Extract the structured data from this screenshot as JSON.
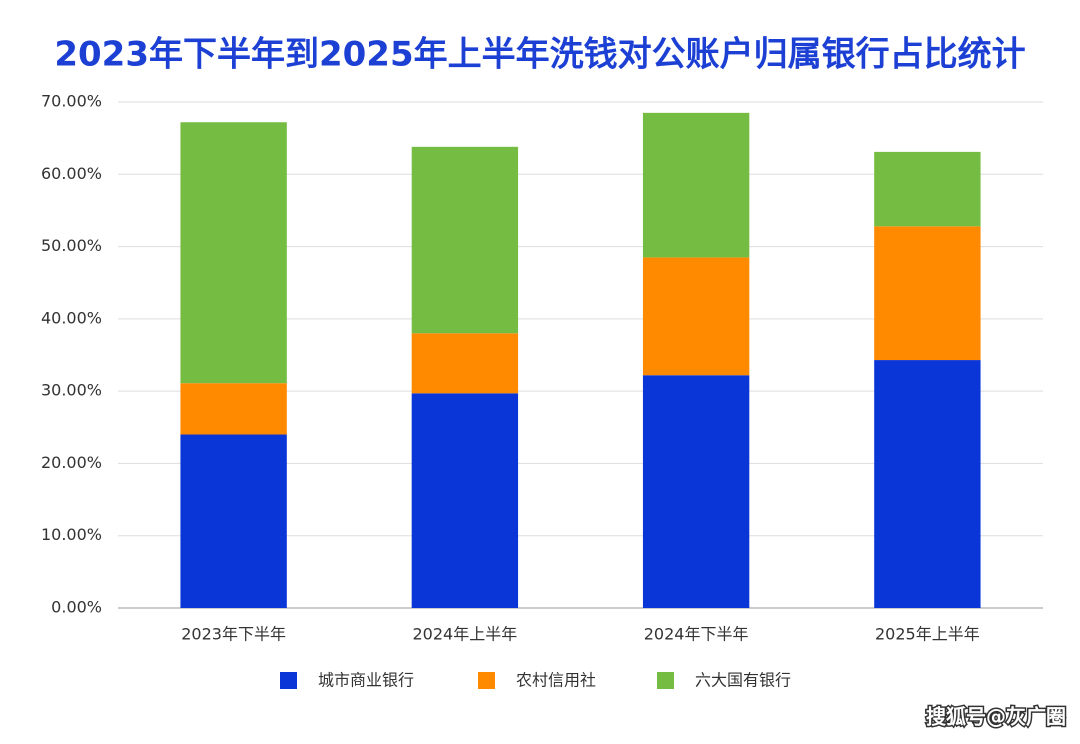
{
  "chart_data": {
    "type": "stacked_bar",
    "title": "2023年下半年到2025年上半年洗钱对公账户归属银行占比统计",
    "categories": [
      "2023年下半年",
      "2024年上半年",
      "2024年下半年",
      "2025年上半年"
    ],
    "series": [
      {
        "name": "城市商业银行",
        "color": "#0a36d8",
        "values": [
          24.0,
          29.7,
          32.2,
          34.3
        ]
      },
      {
        "name": "农村信用社",
        "color": "#ff8a00",
        "values": [
          7.1,
          8.3,
          16.3,
          18.5
        ]
      },
      {
        "name": "六大国有银行",
        "color": "#75bd42",
        "values": [
          36.1,
          25.8,
          20.0,
          10.3
        ]
      }
    ],
    "ylim": [
      0,
      70
    ],
    "yticks": [
      {
        "value": 0,
        "label": "0.00%"
      },
      {
        "value": 10,
        "label": "10.00%"
      },
      {
        "value": 20,
        "label": "20.00%"
      },
      {
        "value": 30,
        "label": "30.00%"
      },
      {
        "value": 40,
        "label": "40.00%"
      },
      {
        "value": 50,
        "label": "50.00%"
      },
      {
        "value": 60,
        "label": "60.00%"
      },
      {
        "value": 70,
        "label": "70.00%"
      }
    ],
    "grid": true,
    "legend": "bottom",
    "source": "搜狐号@灰广圈"
  }
}
